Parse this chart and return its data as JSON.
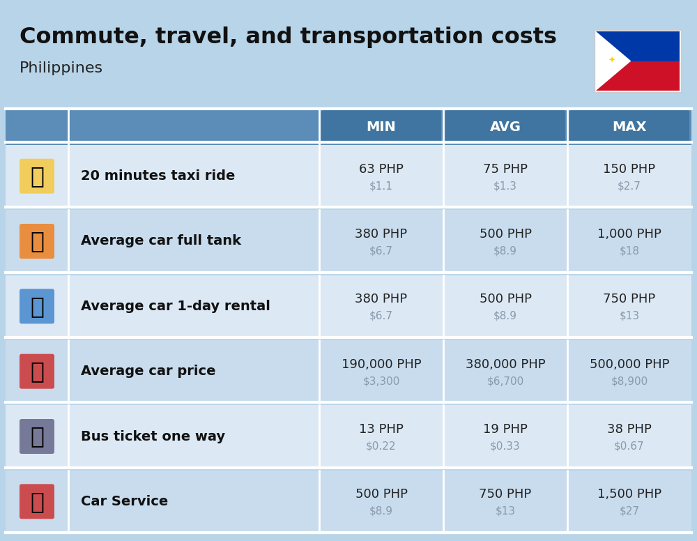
{
  "title": "Commute, travel, and transportation costs",
  "subtitle": "Philippines",
  "bg_color": "#b8d4e8",
  "header_bg": "#5b8db8",
  "header_text_color": "#ffffff",
  "row_bg_even": "#dce9f5",
  "row_bg_odd": "#c8dced",
  "white_line": "#ffffff",
  "col_headers": [
    "MIN",
    "AVG",
    "MAX"
  ],
  "title_color": "#111111",
  "subtitle_color": "#222222",
  "php_color": "#222222",
  "usd_color": "#8899aa",
  "label_color": "#111111",
  "rows": [
    {
      "label": "20 minutes taxi ride",
      "min_php": "63 PHP",
      "min_usd": "$1.1",
      "avg_php": "75 PHP",
      "avg_usd": "$1.3",
      "max_php": "150 PHP",
      "max_usd": "$2.7"
    },
    {
      "label": "Average car full tank",
      "min_php": "380 PHP",
      "min_usd": "$6.7",
      "avg_php": "500 PHP",
      "avg_usd": "$8.9",
      "max_php": "1,000 PHP",
      "max_usd": "$18"
    },
    {
      "label": "Average car 1-day rental",
      "min_php": "380 PHP",
      "min_usd": "$6.7",
      "avg_php": "500 PHP",
      "avg_usd": "$8.9",
      "max_php": "750 PHP",
      "max_usd": "$13"
    },
    {
      "label": "Average car price",
      "min_php": "190,000 PHP",
      "min_usd": "$3,300",
      "avg_php": "380,000 PHP",
      "avg_usd": "$6,700",
      "max_php": "500,000 PHP",
      "max_usd": "$8,900"
    },
    {
      "label": "Bus ticket one way",
      "min_php": "13 PHP",
      "min_usd": "$0.22",
      "avg_php": "19 PHP",
      "avg_usd": "$0.33",
      "max_php": "38 PHP",
      "max_usd": "$0.67"
    },
    {
      "label": "Car Service",
      "min_php": "500 PHP",
      "min_usd": "$8.9",
      "avg_php": "750 PHP",
      "avg_usd": "$13",
      "max_php": "1,500 PHP",
      "max_usd": "$27"
    }
  ]
}
